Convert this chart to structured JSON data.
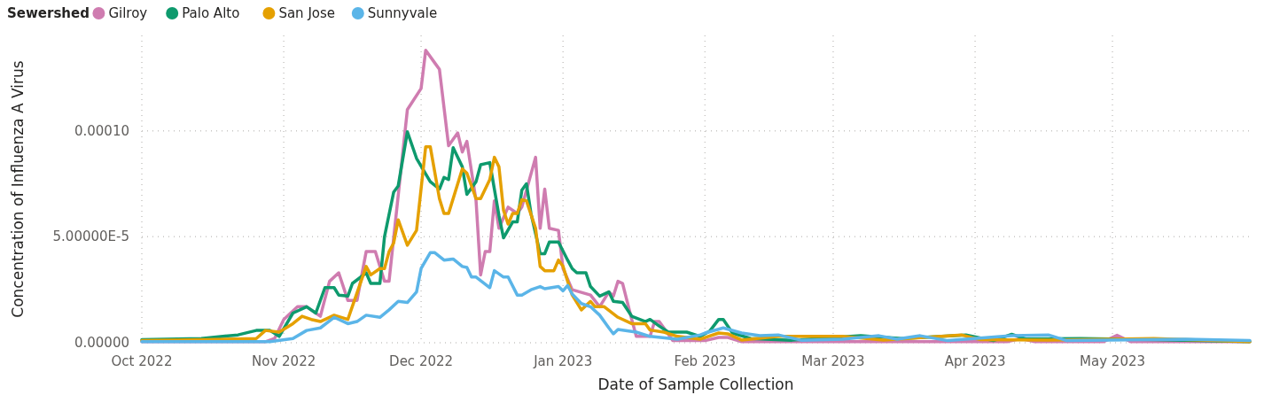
{
  "chart_data": {
    "type": "line",
    "xlabel": "Date of Sample Collection",
    "ylabel": "Concentration of Influenza A Virus",
    "legend_title": "Sewershed",
    "legend": "top left",
    "grid": true,
    "marker": "none",
    "line_style": "solid",
    "xlim": [
      "2022-10-01",
      "2023-05-31"
    ],
    "xticks": [
      {
        "value": "2022-10-01",
        "label": "Oct 2022"
      },
      {
        "value": "2022-11-01",
        "label": "Nov 2022"
      },
      {
        "value": "2022-12-01",
        "label": "Dec 2022"
      },
      {
        "value": "2023-01-01",
        "label": "Jan 2023"
      },
      {
        "value": "2023-02-01",
        "label": "Feb 2023"
      },
      {
        "value": "2023-03-01",
        "label": "Mar 2023"
      },
      {
        "value": "2023-04-01",
        "label": "Apr 2023"
      },
      {
        "value": "2023-05-01",
        "label": "May 2023"
      }
    ],
    "ylim": [
      0,
      0.000145
    ],
    "yticks": [
      {
        "value": 0,
        "label": "0.00000"
      },
      {
        "value": 5e-05,
        "label": "5.00000E-5"
      },
      {
        "value": 0.0001,
        "label": "0.00010"
      }
    ],
    "series": [
      {
        "name": "Gilroy",
        "color": "#cf7cb0",
        "x": [
          "2022-10-01",
          "2022-10-15",
          "2022-10-28",
          "2022-10-30",
          "2022-11-01",
          "2022-11-04",
          "2022-11-06",
          "2022-11-09",
          "2022-11-11",
          "2022-11-13",
          "2022-11-15",
          "2022-11-17",
          "2022-11-19",
          "2022-11-21",
          "2022-11-23",
          "2022-11-24",
          "2022-11-28",
          "2022-12-01",
          "2022-12-02",
          "2022-12-04",
          "2022-12-05",
          "2022-12-07",
          "2022-12-09",
          "2022-12-10",
          "2022-12-11",
          "2022-12-13",
          "2022-12-14",
          "2022-12-15",
          "2022-12-16",
          "2022-12-17",
          "2022-12-18",
          "2022-12-20",
          "2022-12-22",
          "2022-12-23",
          "2022-12-26",
          "2022-12-27",
          "2022-12-28",
          "2022-12-29",
          "2022-12-31",
          "2023-01-01",
          "2023-01-03",
          "2023-01-07",
          "2023-01-09",
          "2023-01-11",
          "2023-01-12",
          "2023-01-13",
          "2023-01-14",
          "2023-01-16",
          "2023-01-17",
          "2023-01-20",
          "2023-01-21",
          "2023-01-22",
          "2023-01-25",
          "2023-02-01",
          "2023-02-04",
          "2023-02-06",
          "2023-02-09",
          "2023-03-15",
          "2023-04-08",
          "2023-04-11",
          "2023-04-14",
          "2023-04-29",
          "2023-05-02",
          "2023-05-05",
          "2023-05-31"
        ],
        "values": [
          5e-07,
          5e-07,
          5e-07,
          2e-06,
          1.1e-05,
          1.7e-05,
          1.7e-05,
          1.25e-05,
          2.9e-05,
          3.3e-05,
          2e-05,
          2e-05,
          4.3e-05,
          4.3e-05,
          2.9e-05,
          2.9e-05,
          0.00011,
          0.00012,
          0.000138,
          0.000132,
          0.000129,
          9.3e-05,
          9.9e-05,
          9e-05,
          9.5e-05,
          6.7e-05,
          3.2e-05,
          4.3e-05,
          4.3e-05,
          6.7e-05,
          5.4e-05,
          6.4e-05,
          6.1e-05,
          6.4e-05,
          8.75e-05,
          5.4e-05,
          7.25e-05,
          5.4e-05,
          5.3e-05,
          3.5e-05,
          2.5e-05,
          2.25e-05,
          1.7e-05,
          2.4e-05,
          2.2e-05,
          2.9e-05,
          2.8e-05,
          1.1e-05,
          3e-06,
          3e-06,
          1e-05,
          1e-05,
          1e-06,
          1e-06,
          2.5e-06,
          2.5e-06,
          5e-07,
          5e-07,
          5e-07,
          2e-06,
          5e-07,
          5e-07,
          3.5e-06,
          5e-07,
          5e-07
        ]
      },
      {
        "name": "Palo Alto",
        "color": "#0e9a6d",
        "x": [
          "2022-10-01",
          "2022-10-14",
          "2022-10-22",
          "2022-10-26",
          "2022-10-29",
          "2022-10-31",
          "2022-11-03",
          "2022-11-06",
          "2022-11-08",
          "2022-11-10",
          "2022-11-12",
          "2022-11-13",
          "2022-11-15",
          "2022-11-16",
          "2022-11-19",
          "2022-11-20",
          "2022-11-22",
          "2022-11-23",
          "2022-11-25",
          "2022-11-26",
          "2022-11-28",
          "2022-11-30",
          "2022-12-03",
          "2022-12-05",
          "2022-12-06",
          "2022-12-07",
          "2022-12-08",
          "2022-12-10",
          "2022-12-11",
          "2022-12-13",
          "2022-12-14",
          "2022-12-16",
          "2022-12-18",
          "2022-12-19",
          "2022-12-21",
          "2022-12-22",
          "2022-12-23",
          "2022-12-24",
          "2022-12-25",
          "2022-12-27",
          "2022-12-28",
          "2022-12-29",
          "2022-12-31",
          "2023-01-02",
          "2023-01-03",
          "2023-01-04",
          "2023-01-06",
          "2023-01-07",
          "2023-01-09",
          "2023-01-11",
          "2023-01-12",
          "2023-01-14",
          "2023-01-16",
          "2023-01-19",
          "2023-01-20",
          "2023-01-22",
          "2023-01-24",
          "2023-01-28",
          "2023-01-31",
          "2023-02-02",
          "2023-02-04",
          "2023-02-05",
          "2023-02-07",
          "2023-02-11",
          "2023-02-20",
          "2023-03-07",
          "2023-03-16",
          "2023-03-30",
          "2023-04-05",
          "2023-04-09",
          "2023-04-12",
          "2023-04-24",
          "2023-05-10",
          "2023-05-31"
        ],
        "values": [
          1.5e-06,
          2e-06,
          3.7e-06,
          5.8e-06,
          5.8e-06,
          3e-06,
          1.4e-05,
          1.7e-05,
          1.4e-05,
          2.6e-05,
          2.6e-05,
          2.25e-05,
          2.2e-05,
          2.8e-05,
          3.3e-05,
          2.8e-05,
          2.8e-05,
          5e-05,
          7.1e-05,
          7.4e-05,
          9.95e-05,
          8.7e-05,
          7.6e-05,
          7.25e-05,
          7.8e-05,
          7.7e-05,
          9.2e-05,
          8.3e-05,
          7e-05,
          7.6e-05,
          8.4e-05,
          8.5e-05,
          6e-05,
          4.95e-05,
          5.7e-05,
          5.7e-05,
          7.2e-05,
          7.5e-05,
          6.1e-05,
          4.2e-05,
          4.2e-05,
          4.75e-05,
          4.75e-05,
          3.9e-05,
          3.5e-05,
          3.3e-05,
          3.3e-05,
          2.65e-05,
          2.2e-05,
          2.4e-05,
          1.95e-05,
          1.9e-05,
          1.25e-05,
          1e-05,
          1.1e-05,
          7.9e-06,
          5e-06,
          5e-06,
          3e-06,
          5.4e-06,
          1.1e-05,
          1.1e-05,
          4.6e-06,
          2e-06,
          1.2e-06,
          3.3e-06,
          2e-06,
          3.7e-06,
          1e-06,
          4e-06,
          1.8e-06,
          2e-06,
          1.5e-06,
          5e-07
        ]
      },
      {
        "name": "San Jose",
        "color": "#e5a000",
        "x": [
          "2022-10-01",
          "2022-10-15",
          "2022-10-26",
          "2022-10-28",
          "2022-10-31",
          "2022-11-03",
          "2022-11-05",
          "2022-11-07",
          "2022-11-09",
          "2022-11-12",
          "2022-11-15",
          "2022-11-19",
          "2022-11-20",
          "2022-11-22",
          "2022-11-23",
          "2022-11-24",
          "2022-11-25",
          "2022-11-26",
          "2022-11-28",
          "2022-11-30",
          "2022-12-02",
          "2022-12-03",
          "2022-12-05",
          "2022-12-06",
          "2022-12-07",
          "2022-12-10",
          "2022-12-11",
          "2022-12-13",
          "2022-12-14",
          "2022-12-16",
          "2022-12-17",
          "2022-12-18",
          "2022-12-19",
          "2022-12-20",
          "2022-12-21",
          "2022-12-22",
          "2022-12-23",
          "2022-12-24",
          "2022-12-26",
          "2022-12-27",
          "2022-12-28",
          "2022-12-30",
          "2022-12-31",
          "2023-01-01",
          "2023-01-02",
          "2023-01-03",
          "2023-01-05",
          "2023-01-07",
          "2023-01-08",
          "2023-01-10",
          "2023-01-13",
          "2023-01-16",
          "2023-01-19",
          "2023-01-20",
          "2023-01-23",
          "2023-01-26",
          "2023-01-31",
          "2023-02-04",
          "2023-02-06",
          "2023-02-09",
          "2023-02-17",
          "2023-02-25",
          "2023-03-03",
          "2023-03-12",
          "2023-03-29",
          "2023-04-02",
          "2023-04-17",
          "2023-05-10",
          "2023-05-31"
        ],
        "values": [
          1e-06,
          1.5e-06,
          2e-06,
          5.8e-06,
          5e-06,
          9e-06,
          1.25e-05,
          1.1e-05,
          1e-05,
          1.3e-05,
          1.1e-05,
          3.6e-05,
          3.2e-05,
          3.5e-05,
          3.5e-05,
          4.3e-05,
          4.7e-05,
          5.8e-05,
          4.6e-05,
          5.3e-05,
          9.25e-05,
          9.25e-05,
          6.8e-05,
          6.1e-05,
          6.1e-05,
          8.2e-05,
          8e-05,
          6.8e-05,
          6.8e-05,
          7.7e-05,
          8.75e-05,
          8.3e-05,
          6.25e-05,
          5.6e-05,
          6.1e-05,
          6.1e-05,
          6.75e-05,
          6.7e-05,
          5.4e-05,
          3.6e-05,
          3.4e-05,
          3.4e-05,
          3.9e-05,
          3.6e-05,
          2.9e-05,
          2.25e-05,
          1.55e-05,
          1.95e-05,
          1.7e-05,
          1.7e-05,
          1.2e-05,
          9e-06,
          9e-06,
          6e-06,
          5e-06,
          3e-06,
          1.7e-06,
          4.6e-06,
          4.2e-06,
          1.3e-06,
          3e-06,
          3e-06,
          3e-06,
          1.3e-06,
          3.7e-06,
          1.5e-06,
          1.3e-06,
          2e-06,
          5e-07
        ]
      },
      {
        "name": "Sunnyvale",
        "color": "#5bb5e8",
        "x": [
          "2022-10-01",
          "2022-10-29",
          "2022-11-03",
          "2022-11-06",
          "2022-11-09",
          "2022-11-12",
          "2022-11-15",
          "2022-11-17",
          "2022-11-19",
          "2022-11-22",
          "2022-11-24",
          "2022-11-26",
          "2022-11-28",
          "2022-11-30",
          "2022-12-01",
          "2022-12-03",
          "2022-12-04",
          "2022-12-06",
          "2022-12-08",
          "2022-12-10",
          "2022-12-11",
          "2022-12-12",
          "2022-12-13",
          "2022-12-16",
          "2022-12-17",
          "2022-12-19",
          "2022-12-20",
          "2022-12-22",
          "2022-12-23",
          "2022-12-25",
          "2022-12-27",
          "2022-12-28",
          "2022-12-31",
          "2023-01-01",
          "2023-01-02",
          "2023-01-03",
          "2023-01-05",
          "2023-01-07",
          "2023-01-09",
          "2023-01-11",
          "2023-01-12",
          "2023-01-13",
          "2023-01-17",
          "2023-01-20",
          "2023-01-26",
          "2023-01-31",
          "2023-02-01",
          "2023-02-05",
          "2023-02-09",
          "2023-02-13",
          "2023-02-17",
          "2023-02-22",
          "2023-03-03",
          "2023-03-11",
          "2023-03-15",
          "2023-03-20",
          "2023-03-26",
          "2023-04-09",
          "2023-04-17",
          "2023-04-21",
          "2023-05-17",
          "2023-05-31"
        ],
        "values": [
          5e-07,
          5e-07,
          2e-06,
          5.8e-06,
          7e-06,
          1.2e-05,
          9e-06,
          1e-05,
          1.3e-05,
          1.2e-05,
          1.55e-05,
          1.95e-05,
          1.9e-05,
          2.4e-05,
          3.5e-05,
          4.25e-05,
          4.25e-05,
          3.9e-05,
          3.95e-05,
          3.6e-05,
          3.55e-05,
          3.1e-05,
          3.1e-05,
          2.6e-05,
          3.4e-05,
          3.1e-05,
          3.1e-05,
          2.25e-05,
          2.25e-05,
          2.5e-05,
          2.65e-05,
          2.55e-05,
          2.65e-05,
          2.45e-05,
          2.7e-05,
          2.3e-05,
          1.85e-05,
          1.7e-05,
          1.3e-05,
          7e-06,
          4.2e-06,
          6.3e-06,
          5e-06,
          3e-06,
          1.7e-06,
          3.7e-06,
          4.6e-06,
          7e-06,
          4.6e-06,
          3.3e-06,
          3.7e-06,
          1.2e-06,
          1.7e-06,
          3.3e-06,
          1.7e-06,
          3.3e-06,
          1e-06,
          3.3e-06,
          3.7e-06,
          1e-06,
          1.7e-06,
          1e-06
        ]
      }
    ]
  }
}
